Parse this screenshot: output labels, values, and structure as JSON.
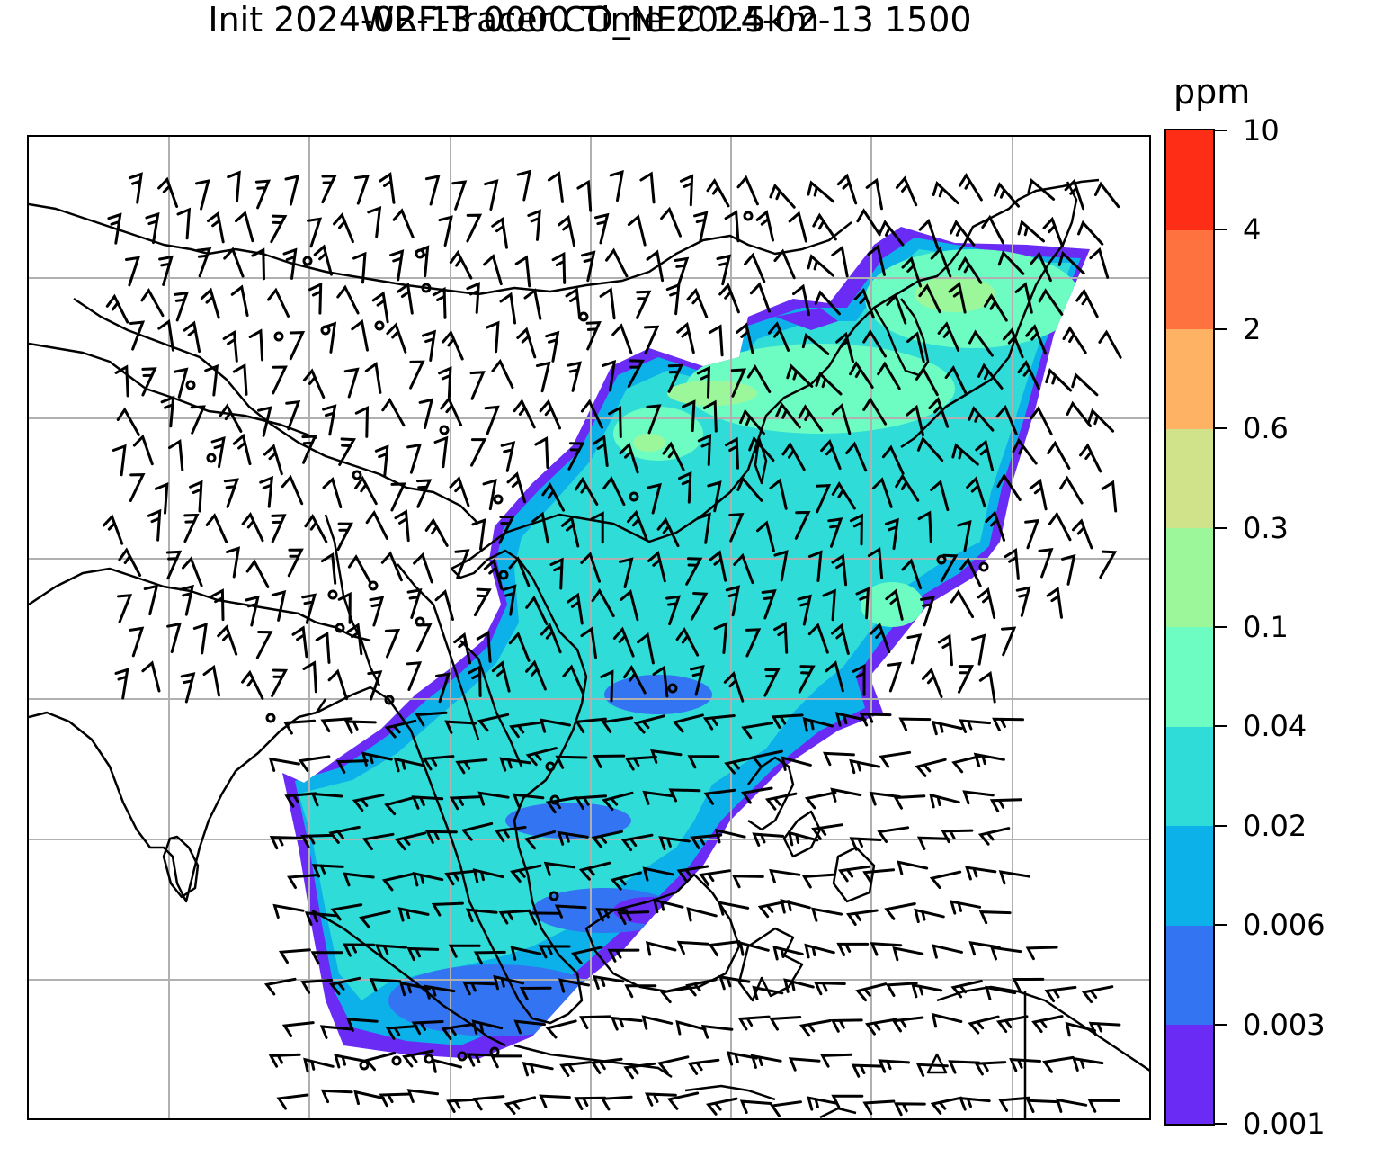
{
  "title": {
    "line1": "WRF-Tracer CO_NEC 1.5km",
    "line2": "Init 2024-02-13 0000 Time 2024-02-13 1500"
  },
  "colorbar": {
    "unit": "ppm",
    "ticks": [
      "0.001",
      "0.003",
      "0.006",
      "0.02",
      "0.04",
      "0.1",
      "0.3",
      "0.6",
      "2",
      "4",
      "10"
    ],
    "colors": [
      "#6a2cf5",
      "#3374f3",
      "#0db1ea",
      "#2fdcd7",
      "#6dfdc2",
      "#9cf79b",
      "#d0e28a",
      "#fdb264",
      "#fe7240",
      "#fe2e16"
    ]
  },
  "map": {
    "layers": [
      "coastlines",
      "borders",
      "gridlines",
      "tracer-fill",
      "wind-barbs",
      "station-markers"
    ],
    "gridline_color": "#b0b0b0",
    "line_color": "#000000"
  }
}
